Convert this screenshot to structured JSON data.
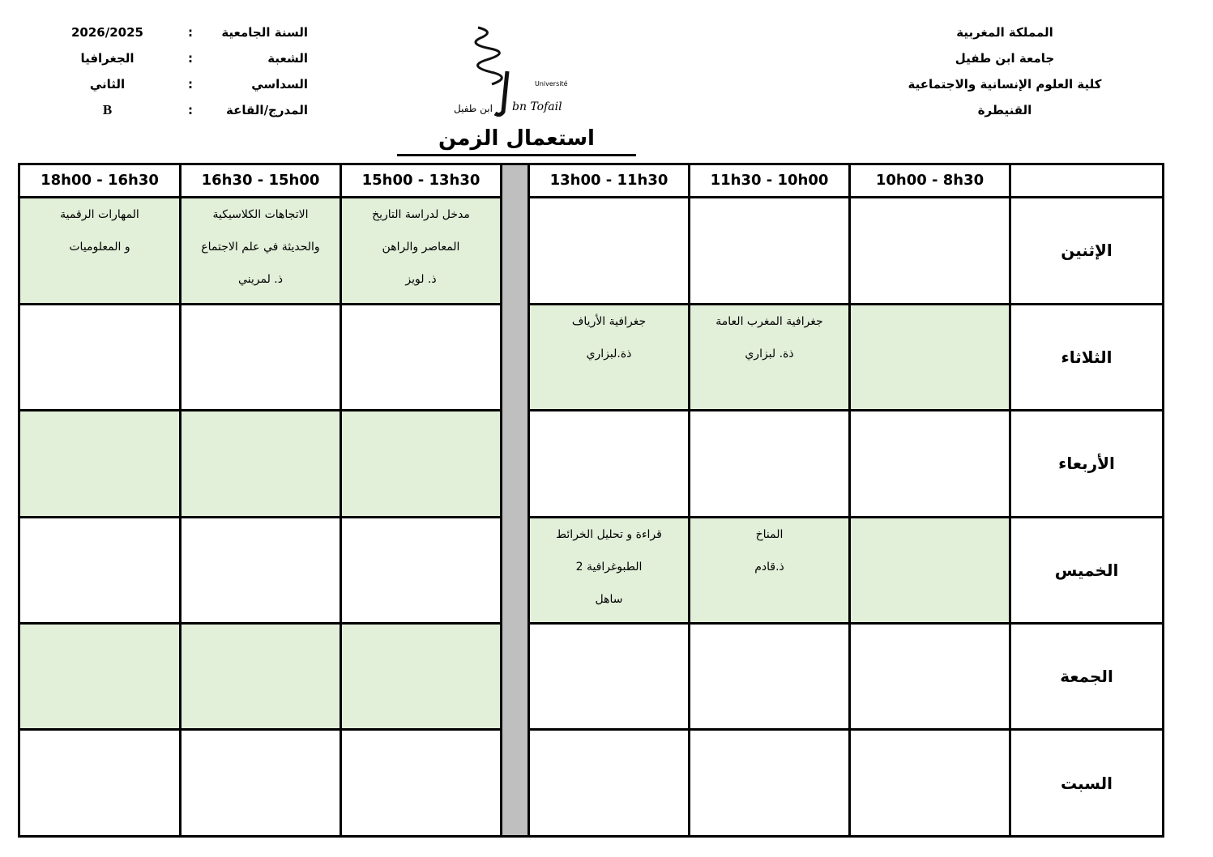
{
  "header_right": [
    "المملكة المغربية",
    "جامعة ابن طفيل",
    "كلية العلوم الإنسانية والاجتماعية",
    "القنيطرة"
  ],
  "header_left": [
    {
      "label": "السنة الجامعية",
      "value": "2026/2025"
    },
    {
      "label": "الشعبة",
      "value": "الجغرافيا"
    },
    {
      "label": "السداسي",
      "value": "الثاني"
    },
    {
      "label": "المدرج/القاعة",
      "value": "B"
    }
  ],
  "logo": {
    "text_ar": "جامعة ابن طفيل",
    "text_fr": "Université Ibn Tofail"
  },
  "title": "استعمال الزمن",
  "colors": {
    "course_cell": "#e2efd9",
    "separator": "#bfbfbf"
  },
  "time_slots": [
    "10h00 - 8h30",
    "11h30 - 10h00",
    "13h00 - 11h30",
    "15h00 - 13h30",
    "16h30 - 15h00",
    "18h00 - 16h30"
  ],
  "days": [
    {
      "name": "الإثنين",
      "cells": [
        {
          "green": false,
          "lines": []
        },
        {
          "green": false,
          "lines": []
        },
        {
          "green": false,
          "lines": []
        },
        {
          "green": true,
          "lines": [
            "مدخل لدراسة التاريخ",
            "المعاصر والراهن",
            "ذ.  لويز"
          ]
        },
        {
          "green": true,
          "lines": [
            "الاتجاهات الكلاسيكية",
            "والحديثة في علم الاجتماع",
            "ذ.  لمريني"
          ]
        },
        {
          "green": true,
          "lines": [
            "المهارات الرقمية",
            "و المعلوميات"
          ]
        }
      ]
    },
    {
      "name": "الثلاثاء",
      "cells": [
        {
          "green": true,
          "lines": []
        },
        {
          "green": true,
          "lines": [
            "جغرافية المغرب العامة",
            "ذة. لبزاري"
          ]
        },
        {
          "green": true,
          "lines": [
            "جغرافية الأرياف",
            "ذة.لبزاري"
          ]
        },
        {
          "green": false,
          "lines": []
        },
        {
          "green": false,
          "lines": []
        },
        {
          "green": false,
          "lines": []
        }
      ]
    },
    {
      "name": "الأربعاء",
      "cells": [
        {
          "green": false,
          "lines": []
        },
        {
          "green": false,
          "lines": []
        },
        {
          "green": false,
          "lines": []
        },
        {
          "green": true,
          "lines": []
        },
        {
          "green": true,
          "lines": []
        },
        {
          "green": true,
          "lines": []
        }
      ]
    },
    {
      "name": "الخميس",
      "cells": [
        {
          "green": true,
          "lines": []
        },
        {
          "green": true,
          "lines": [
            "المناخ",
            "ذ.قادم"
          ]
        },
        {
          "green": true,
          "lines": [
            "قراءة و تحليل الخرائط",
            "الطبوغرافية 2",
            "ساهل"
          ]
        },
        {
          "green": false,
          "lines": []
        },
        {
          "green": false,
          "lines": []
        },
        {
          "green": false,
          "lines": []
        }
      ]
    },
    {
      "name": "الجمعة",
      "cells": [
        {
          "green": false,
          "lines": []
        },
        {
          "green": false,
          "lines": []
        },
        {
          "green": false,
          "lines": []
        },
        {
          "green": true,
          "lines": []
        },
        {
          "green": true,
          "lines": []
        },
        {
          "green": true,
          "lines": []
        }
      ]
    },
    {
      "name": "السبت",
      "cells": [
        {
          "green": false,
          "lines": []
        },
        {
          "green": false,
          "lines": []
        },
        {
          "green": false,
          "lines": []
        },
        {
          "green": false,
          "lines": []
        },
        {
          "green": false,
          "lines": []
        },
        {
          "green": false,
          "lines": []
        }
      ]
    }
  ]
}
